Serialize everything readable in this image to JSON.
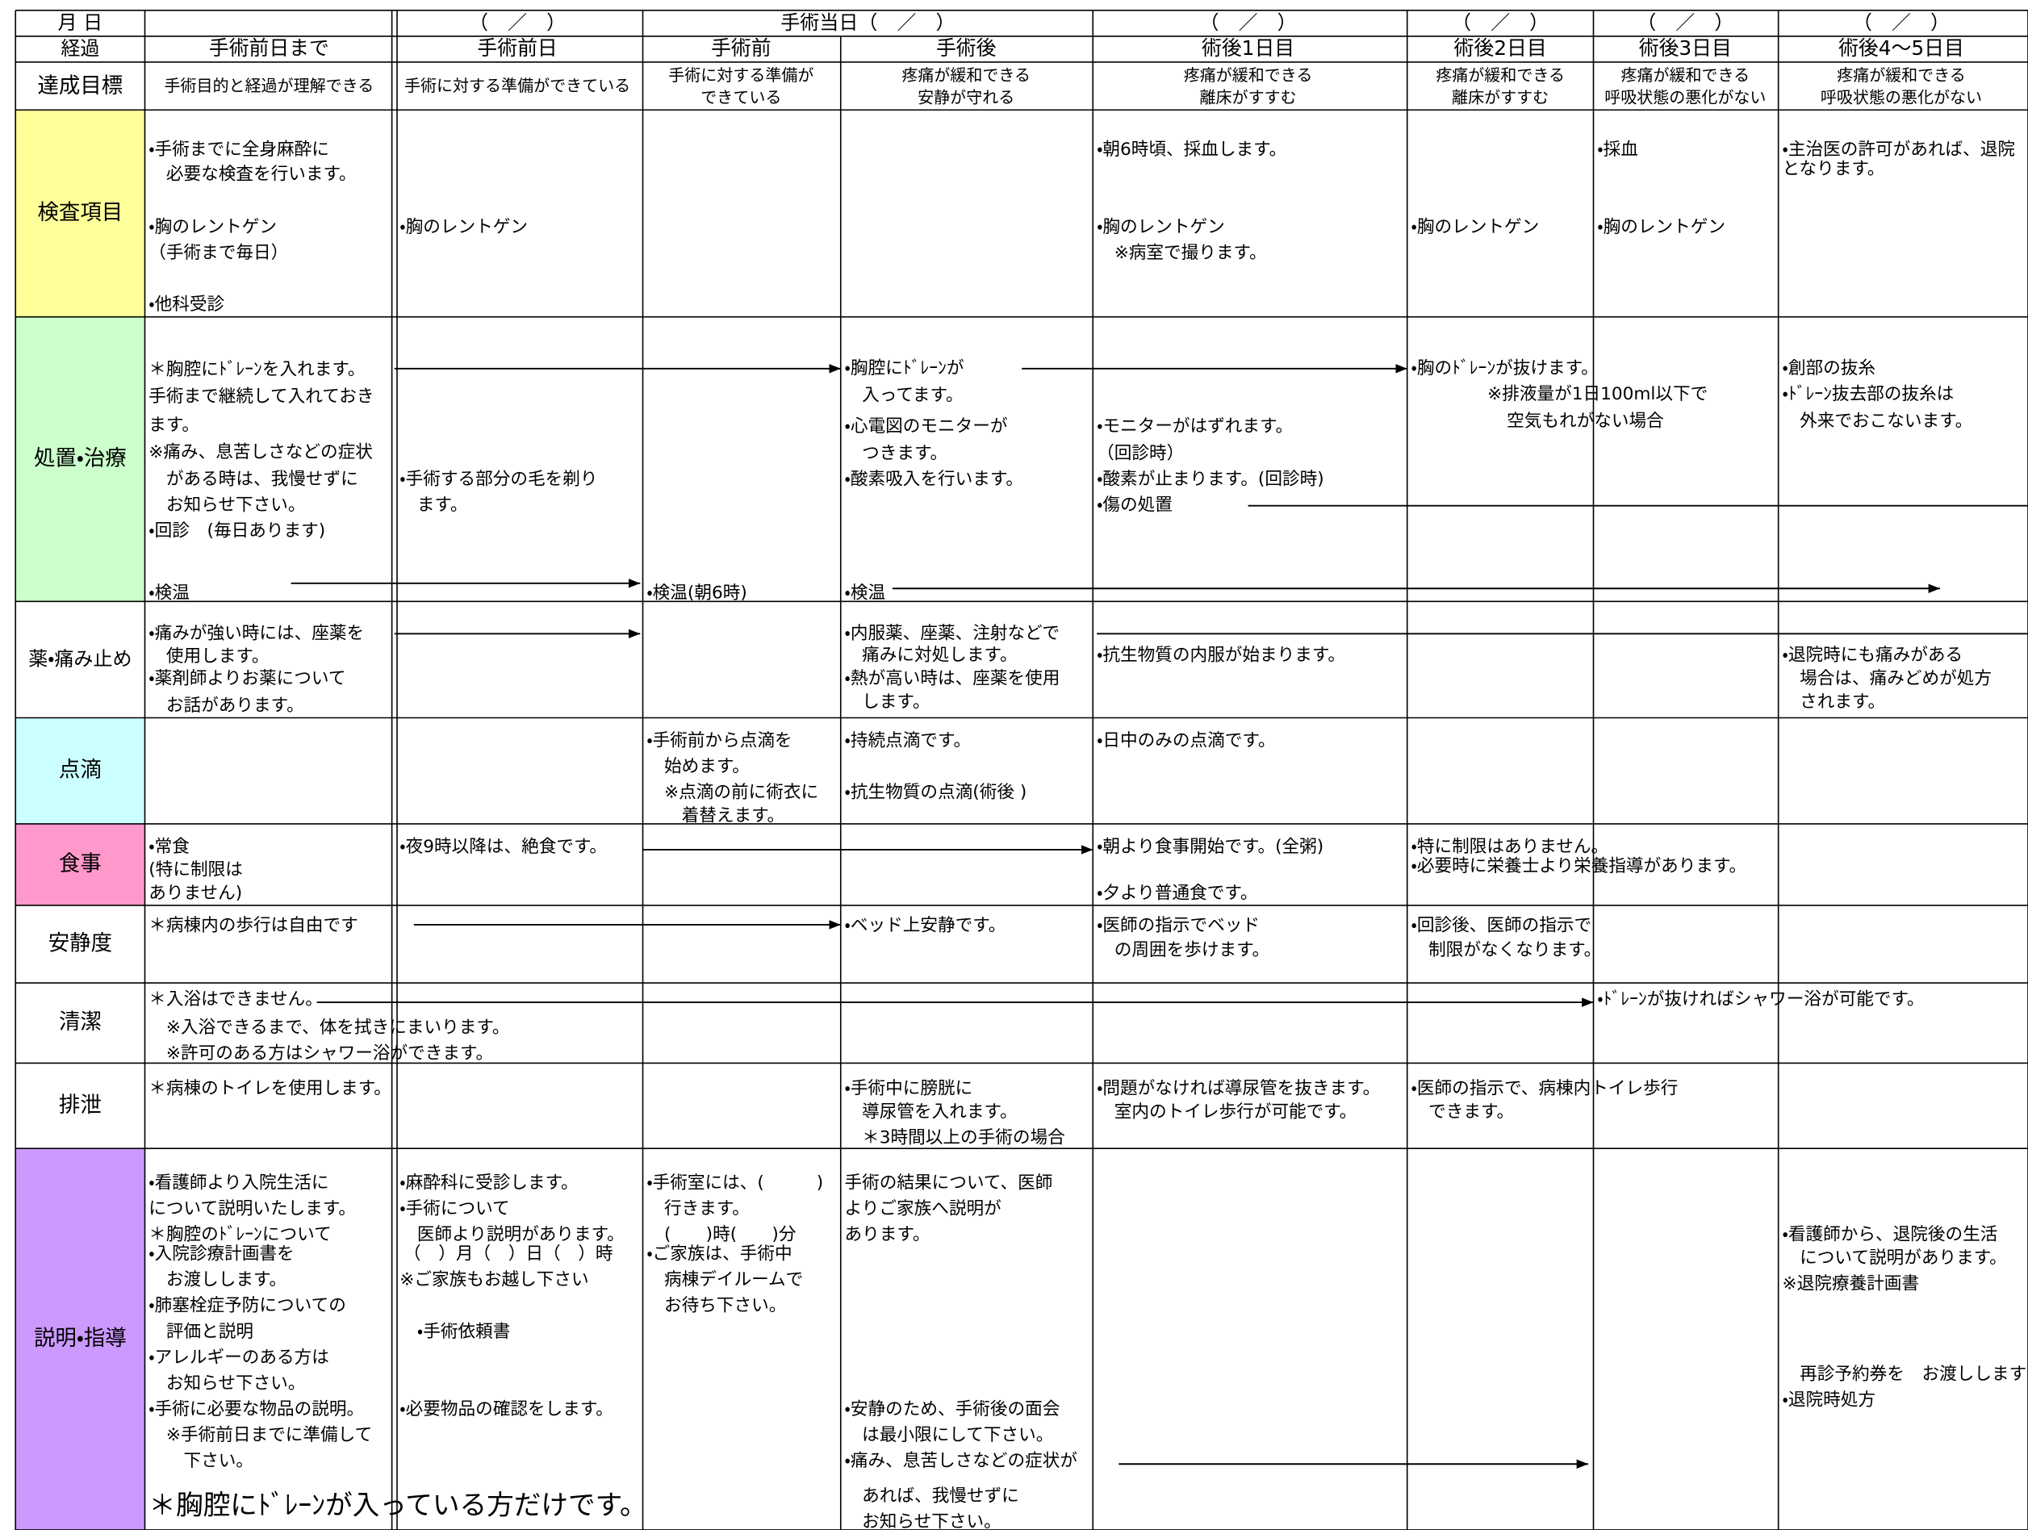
{
  "header": {
    "date_label": "月 日",
    "progress_label": "経過",
    "dates": [
      "（　／　）",
      "手術当日（　／　）",
      "（　／　）",
      "（　／　）",
      "（　／　）",
      "（　／　）"
    ],
    "stages": [
      "手術前日まで",
      "手術前日",
      "手術前",
      "手術後",
      "術後1日目",
      "術後2日目",
      "術後3日目",
      "術後4～5日目"
    ]
  },
  "rows": [
    {
      "label": "達成目標",
      "lines": [
        "手術目的と経過が理解できる",
        "手術に対する準備ができている",
        "手術に対する準備が",
        "できている",
        "疼痛が緩和できる",
        "安静が守れる",
        "疼痛が緩和できる",
        "離床がすすむ",
        "疼痛が緩和できる",
        "離床がすすむ",
        "疼痛が緩和できる",
        "呼吸状態の悪化がない",
        "疼痛が緩和できる",
        "呼吸状態の悪化がない"
      ]
    },
    {
      "label": "検査項目",
      "lines": [
        "・手術までに全身麻酔に",
        "　必要な検査を行います。",
        "・胸のレントゲン",
        "（手術まで毎日）",
        "・他科受診",
        "・胸のレントゲン",
        "・朝6時頃、採血します。",
        "・胸のレントゲン",
        "　※病室で撮ります。",
        "・胸のレントゲン",
        "・採血",
        "・胸のレントゲン",
        "・主治医の許可があれば、退院",
        "となります。"
      ]
    },
    {
      "label": "処置・治療",
      "lines": [
        "＊胸腔にﾄﾞﾚｰﾝを入れます。",
        "手術まで継続して入れておき",
        "ます。",
        "※痛み、息苦しさなどの症状",
        "　がある時は、我慢せずに",
        "　お知らせ下さい。",
        "・回診　(毎日あります)",
        "・検温",
        "・手術する部分の毛を剃り",
        "　ます。",
        "・検温(朝6時)",
        "・胸腔にﾄﾞﾚｰﾝが",
        "　入ってます。",
        "・心電図のモニターが",
        "　つきます。",
        "・酸素吸入を行います。",
        "・検温",
        "・モニターがはずれます。",
        "（回診時）",
        "・酸素が止まります。(回診時)",
        "・傷の処置",
        "・胸のﾄﾞﾚｰﾝが抜けます。",
        "※排液量が1日100ml以下で",
        "空気もれがない場合",
        "・創部の抜糸",
        "・ﾄﾞﾚｰﾝ抜去部の抜糸は",
        "　外来でおこないます。"
      ]
    },
    {
      "label": "薬・痛み止め",
      "lines": [
        "・痛みが強い時には、座薬を",
        "　使用します。",
        "・薬剤師よりお薬について",
        "　お話があります。",
        "・内服薬、座薬、注射などで",
        "　痛みに対処します。",
        "・熱が高い時は、座薬を使用",
        "　します。",
        "・抗生物質の内服が始まります。",
        "・退院時にも痛みがある",
        "　場合は、痛みどめが処方",
        "　されます。"
      ]
    },
    {
      "label": "点滴",
      "lines": [
        "・手術前から点滴を",
        "　始めます。",
        "　※点滴の前に術衣に",
        "　　着替えます。",
        "・持続点滴です。",
        "・抗生物質の点滴(術後 )",
        "・日中のみの点滴です。"
      ]
    },
    {
      "label": "食事",
      "lines": [
        "・常食",
        "(特に制限は",
        "ありません)",
        "・夜9時以降は、絶食です。",
        "・朝より食事開始です。(全粥)",
        "・夕より普通食です。",
        "・特に制限はありません。",
        "・必要時に栄養士より栄養指導があります。"
      ]
    },
    {
      "label": "安静度",
      "lines": [
        "＊病棟内の歩行は自由です",
        "・ベッド上安静です。",
        "・医師の指示でベッド",
        "　の周囲を歩けます。",
        "・回診後、医師の指示で",
        "　制限がなくなります。"
      ]
    },
    {
      "label": "清潔",
      "lines": [
        "＊入浴はできません。",
        "　※入浴できるまで、体を拭きにまいります。",
        "　※許可のある方はシャワー浴ができます。",
        "・ﾄﾞﾚｰﾝが抜ければシャワー浴が可能です。"
      ]
    },
    {
      "label": "排泄",
      "lines": [
        "＊病棟のトイレを使用します。",
        "・手術中に膀胱に",
        "　導尿管を入れます。",
        "　＊3時間以上の手術の場合",
        "・問題がなければ導尿管を抜きます。",
        "　室内のトイレ歩行が可能です。",
        "・医師の指示で、病棟内トイレ歩行",
        "　できます。"
      ]
    },
    {
      "label": "説明・指導",
      "lines": [
        "・看護師より入院生活に",
        "について説明いたします。",
        "＊胸腔のﾄﾞﾚｰﾝについて",
        "・入院診療計画書を",
        "　お渡しします。",
        "・肺塞栓症予防についての",
        "　評価と説明",
        "・アレルギーのある方は",
        "　お知らせ下さい。",
        "・手術に必要な物品の説明。",
        "　※手術前日までに準備して",
        "　　下さい。",
        "＊胸腔にﾄﾞﾚｰﾝが入っている方だけです。",
        "・麻酔科に受診します。",
        "・手術について",
        "　医師より説明があります。",
        "（　）月（　）日（　）時",
        "※ご家族もお越し下さい",
        "　・手術依頼書",
        "・必要物品の確認をします。",
        "・手術室には、(　　　)",
        "　行きます。",
        "　(　　)時(　　)分",
        "・ご家族は、手術中",
        "　病棟デイルームで",
        "　お待ち下さい。",
        "手術の結果について、医師",
        "よりご家族へ説明が",
        "あります。",
        "・安静のため、手術後の面会",
        "　は最小限にして下さい。",
        "・痛み、息苦しさなどの症状が",
        "　あれば、我慢せずに",
        "　お知らせ下さい。",
        "・看護師から、退院後の生活",
        "　について説明があります。",
        "※退院療養計画書",
        "　再診予約券を　お渡しします",
        "・退院時処方"
      ]
    }
  ]
}
